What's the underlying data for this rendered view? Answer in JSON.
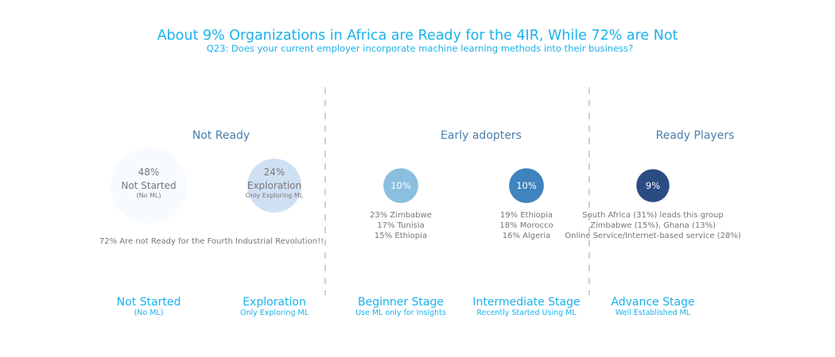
{
  "chart_data": {
    "type": "scatter",
    "title": "About 9% Organizations in Africa are Ready for the 4IR, While 72% are Not",
    "subtitle": "Q23: Does your current employer incorporate machine learning methods into their business?",
    "groups": [
      {
        "label": "Not Ready",
        "note": "72% Are not Ready for the Fourth Industrial Revolution!!"
      },
      {
        "label": "Early adopters"
      },
      {
        "label": "Ready Players"
      }
    ],
    "stages": [
      {
        "label": "Not Started",
        "sub": "(No ML)",
        "value": 48,
        "value_text": "48%",
        "circle_text": "Not Started",
        "circle_sub": "(No ML)",
        "color": "#f7fbff",
        "text_color": "#777777",
        "group": 0,
        "notes": []
      },
      {
        "label": "Exploration",
        "sub": "Only Exploring ML",
        "value": 24,
        "value_text": "24%",
        "circle_text": "Exploration",
        "circle_sub": "Only Exploring ML",
        "color": "#cfe0f2",
        "text_color": "#777777",
        "group": 0,
        "notes": []
      },
      {
        "label": "Beginner Stage",
        "sub": "Use ML only for Insights",
        "value": 10,
        "value_text": "10%",
        "circle_text": "",
        "circle_sub": "",
        "color": "#8abfe0",
        "text_color": "#ffffff",
        "group": 1,
        "notes": [
          "23% Zimbabwe",
          "17% Tunisia",
          "15% Ethiopia"
        ]
      },
      {
        "label": "Intermediate Stage",
        "sub": "Recently Started Using ML",
        "value": 10,
        "value_text": "10%",
        "circle_text": "",
        "circle_sub": "",
        "color": "#3f83bf",
        "text_color": "#ffffff",
        "group": 1,
        "notes": [
          "19% Ethiopia",
          "18% Morocco",
          "16% Algeria"
        ]
      },
      {
        "label": "Advance Stage",
        "sub": "Well Established ML",
        "value": 9,
        "value_text": "9%",
        "circle_text": "",
        "circle_sub": "",
        "color": "#2b4c83",
        "text_color": "#ffffff",
        "group": 2,
        "notes": [
          "South Africa (31%) leads this group",
          "Zimbabwe (15%), Ghana (13%)",
          "Online Service/Internet-based service (28%)"
        ]
      }
    ],
    "colors": {
      "title": "#1ab2ea",
      "group_label": "#4a7fad",
      "note": "#777777",
      "divider": "#d0d0d0"
    }
  }
}
